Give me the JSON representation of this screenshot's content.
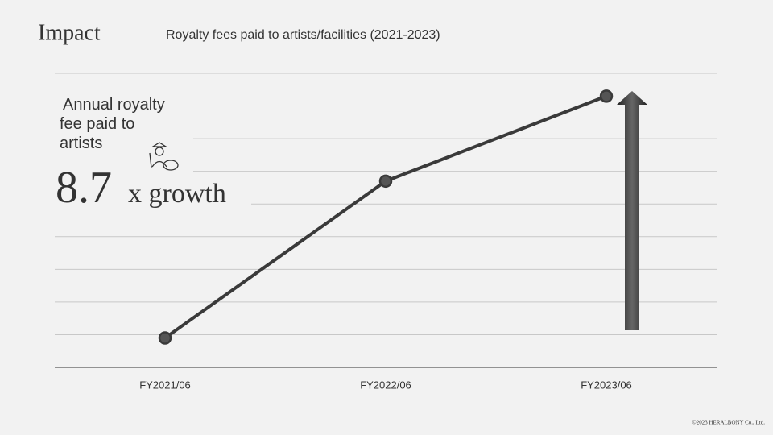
{
  "header": {
    "title": "Impact"
  },
  "chart_data": {
    "type": "line",
    "title": "Royalty fees paid to artists/facilities (2021-2023)",
    "categories": [
      "FY2021/06",
      "FY2022/06",
      "FY2023/06"
    ],
    "series": [
      {
        "color": "#3a3a3a",
        "values": [
          0.9,
          5.7,
          8.3
        ]
      }
    ],
    "ylim": [
      0,
      9
    ],
    "yticks": [
      1,
      2,
      3,
      4,
      5,
      6,
      7,
      8,
      9
    ],
    "grid": true
  },
  "callout": {
    "label": "Annual royalty fee paid to artists",
    "value": 8.7,
    "suffix": "x growth"
  },
  "footer": "©2023 HERALBONY Co., Ltd."
}
